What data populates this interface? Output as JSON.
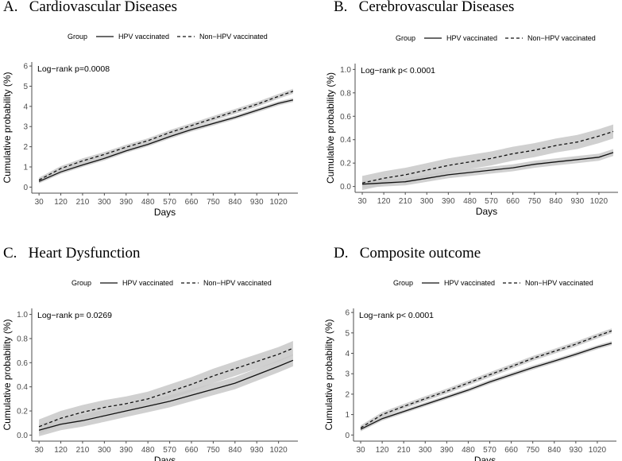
{
  "figure": {
    "legend": {
      "group_label": "Group",
      "solid_label": "HPV vaccinated",
      "dashed_label": "Non−HPV vaccinated"
    },
    "colors": {
      "line": "#111111",
      "band": "#c8c8c8",
      "axis": "#4d4d4d",
      "tick_text": "#4d4d4d"
    }
  },
  "chart_data": [
    {
      "type": "line",
      "panel_title": "A.   Cardiovascular Diseases",
      "annotation": "Log−rank p=0.0008",
      "xlabel": "Days",
      "ylabel": "Cumulative probability (%)",
      "xlim": [
        0,
        1100
      ],
      "ylim": [
        -0.3,
        6.2
      ],
      "x_ticks": [
        30,
        120,
        210,
        300,
        390,
        480,
        570,
        660,
        750,
        840,
        930,
        1020
      ],
      "y_ticks": [
        0,
        1,
        2,
        3,
        4,
        5,
        6
      ],
      "y_tick_labels": [
        "0",
        "1",
        "2",
        "3",
        "4",
        "5",
        "6"
      ],
      "x": [
        30,
        120,
        210,
        300,
        390,
        480,
        570,
        660,
        750,
        840,
        930,
        1020,
        1080
      ],
      "series": [
        {
          "name": "HPV vaccinated",
          "style": "solid",
          "values": [
            0.28,
            0.75,
            1.1,
            1.42,
            1.8,
            2.12,
            2.5,
            2.85,
            3.15,
            3.45,
            3.8,
            4.15,
            4.32
          ],
          "band": 0.1
        },
        {
          "name": "Non−HPV vaccinated",
          "style": "dashed",
          "values": [
            0.35,
            0.92,
            1.3,
            1.62,
            1.98,
            2.3,
            2.7,
            3.05,
            3.4,
            3.75,
            4.1,
            4.5,
            4.75
          ],
          "band": 0.12
        }
      ]
    },
    {
      "type": "line",
      "panel_title": "B.   Cerebrovascular Diseases",
      "annotation": "Log−rank p< 0.0001",
      "xlabel": "Days",
      "ylabel": "Cumulative probability (%)",
      "xlim": [
        0,
        1100
      ],
      "ylim": [
        -0.05,
        1.05
      ],
      "x_ticks": [
        30,
        120,
        210,
        300,
        390,
        480,
        570,
        660,
        750,
        840,
        930,
        1020
      ],
      "y_ticks": [
        0,
        0.2,
        0.4,
        0.6,
        0.8,
        1.0
      ],
      "y_tick_labels": [
        "0.0",
        "0.2",
        "0.4",
        "0.6",
        "0.8",
        "1.0"
      ],
      "x": [
        30,
        120,
        210,
        300,
        390,
        480,
        570,
        660,
        750,
        840,
        930,
        1020,
        1080
      ],
      "series": [
        {
          "name": "HPV vaccinated",
          "style": "solid",
          "values": [
            0.02,
            0.03,
            0.04,
            0.07,
            0.1,
            0.12,
            0.14,
            0.16,
            0.19,
            0.21,
            0.23,
            0.25,
            0.29
          ],
          "band": 0.03
        },
        {
          "name": "Non−HPV vaccinated",
          "style": "dashed",
          "values": [
            0.03,
            0.07,
            0.1,
            0.14,
            0.18,
            0.21,
            0.24,
            0.28,
            0.31,
            0.35,
            0.38,
            0.43,
            0.47
          ],
          "band": 0.06
        }
      ]
    },
    {
      "type": "line",
      "panel_title": "C.   Heart Dysfunction",
      "annotation": "Log−rank p= 0.0269",
      "xlabel": "Days",
      "ylabel": "Cumulative probability (%)",
      "xlim": [
        0,
        1100
      ],
      "ylim": [
        -0.05,
        1.05
      ],
      "x_ticks": [
        30,
        120,
        210,
        300,
        390,
        480,
        570,
        660,
        750,
        840,
        930,
        1020
      ],
      "y_ticks": [
        0,
        0.2,
        0.4,
        0.6,
        0.8,
        1.0
      ],
      "y_tick_labels": [
        "0.0",
        "0.2",
        "0.4",
        "0.6",
        "0.8",
        "1.0"
      ],
      "x": [
        30,
        120,
        210,
        300,
        390,
        480,
        570,
        660,
        750,
        840,
        930,
        1020,
        1080
      ],
      "series": [
        {
          "name": "HPV vaccinated",
          "style": "solid",
          "values": [
            0.04,
            0.09,
            0.12,
            0.16,
            0.2,
            0.24,
            0.28,
            0.33,
            0.38,
            0.43,
            0.5,
            0.57,
            0.62
          ],
          "band": 0.05
        },
        {
          "name": "Non−HPV vaccinated",
          "style": "dashed",
          "values": [
            0.07,
            0.14,
            0.19,
            0.23,
            0.26,
            0.3,
            0.36,
            0.42,
            0.49,
            0.55,
            0.61,
            0.67,
            0.72
          ],
          "band": 0.06
        }
      ]
    },
    {
      "type": "line",
      "panel_title": "D.   Composite outcome",
      "annotation": "Log−rank p< 0.0001",
      "xlabel": "Days",
      "ylabel": "Cumulative probability (%)",
      "xlim": [
        0,
        1100
      ],
      "ylim": [
        -0.3,
        6.2
      ],
      "x_ticks": [
        30,
        120,
        210,
        300,
        390,
        480,
        570,
        660,
        750,
        840,
        930,
        1020
      ],
      "y_ticks": [
        0,
        1,
        2,
        3,
        4,
        5,
        6
      ],
      "y_tick_labels": [
        "0",
        "1",
        "2",
        "3",
        "4",
        "5",
        "6"
      ],
      "x": [
        30,
        120,
        210,
        300,
        390,
        480,
        570,
        660,
        750,
        840,
        930,
        1020,
        1080
      ],
      "series": [
        {
          "name": "HPV vaccinated",
          "style": "solid",
          "values": [
            0.28,
            0.8,
            1.15,
            1.5,
            1.85,
            2.2,
            2.6,
            2.95,
            3.3,
            3.62,
            3.95,
            4.3,
            4.5
          ],
          "band": 0.1
        },
        {
          "name": "Non−HPV vaccinated",
          "style": "dashed",
          "values": [
            0.35,
            1.0,
            1.4,
            1.78,
            2.15,
            2.55,
            2.95,
            3.35,
            3.75,
            4.1,
            4.45,
            4.85,
            5.1
          ],
          "band": 0.12
        }
      ]
    }
  ]
}
